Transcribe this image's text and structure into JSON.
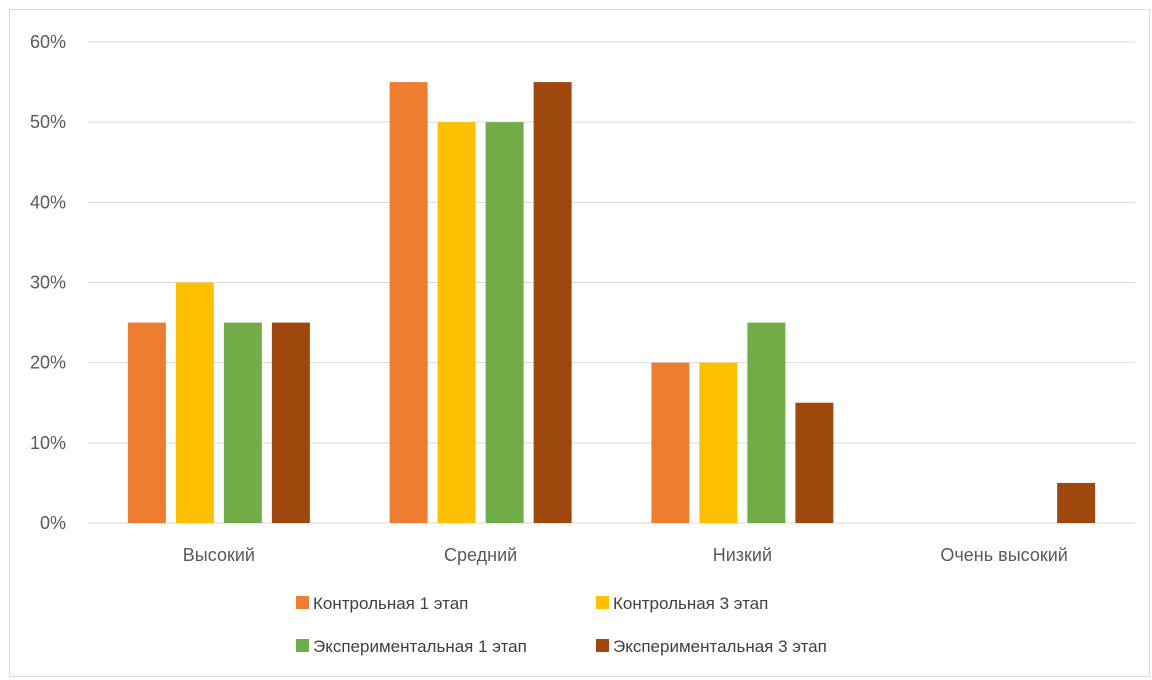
{
  "chart_data": {
    "type": "bar",
    "title": "",
    "xlabel": "",
    "ylabel": "",
    "ylim": [
      0,
      60
    ],
    "y_ticks": [
      "0%",
      "10%",
      "20%",
      "30%",
      "40%",
      "50%",
      "60%"
    ],
    "y_tick_values": [
      0,
      10,
      20,
      30,
      40,
      50,
      60
    ],
    "grid": true,
    "legend_position": "bottom",
    "categories": [
      "Высокий",
      "Средний",
      "Низкий",
      "Очень высокий"
    ],
    "series": [
      {
        "name": "Контрольная 1 этап",
        "color": "#ed7d31",
        "values": [
          25,
          55,
          20,
          0
        ]
      },
      {
        "name": "Контрольная 3 этап",
        "color": "#ffc000",
        "values": [
          30,
          50,
          20,
          0
        ]
      },
      {
        "name": "Экспериментальная 1 этап",
        "color": "#70ad47",
        "values": [
          25,
          50,
          25,
          0
        ]
      },
      {
        "name": "Экспериментальная 3 этап",
        "color": "#9e480e",
        "values": [
          25,
          55,
          15,
          5
        ]
      }
    ]
  }
}
